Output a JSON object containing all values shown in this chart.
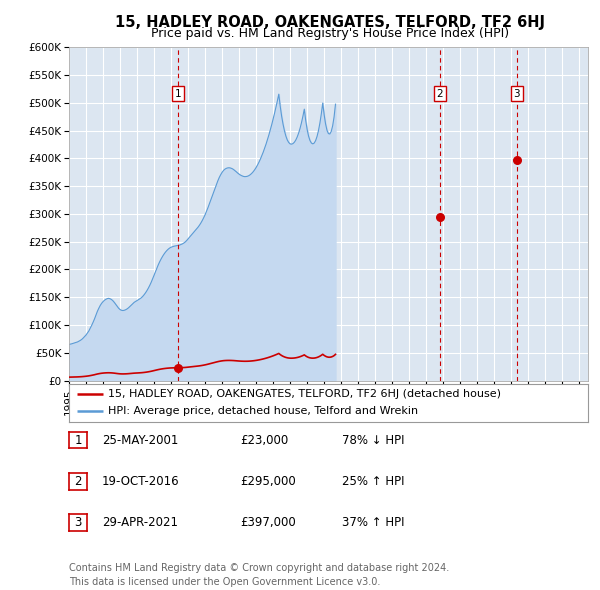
{
  "title": "15, HADLEY ROAD, OAKENGATES, TELFORD, TF2 6HJ",
  "subtitle": "Price paid vs. HM Land Registry's House Price Index (HPI)",
  "ylim": [
    0,
    600000
  ],
  "yticks": [
    0,
    50000,
    100000,
    150000,
    200000,
    250000,
    300000,
    350000,
    400000,
    450000,
    500000,
    550000,
    600000
  ],
  "ytick_labels": [
    "£0",
    "£50K",
    "£100K",
    "£150K",
    "£200K",
    "£250K",
    "£300K",
    "£350K",
    "£400K",
    "£450K",
    "£500K",
    "£550K",
    "£600K"
  ],
  "xlim_start": 1995.0,
  "xlim_end": 2025.5,
  "plot_bg_color": "#dce6f1",
  "grid_color": "#ffffff",
  "sale_dates": [
    2001.39,
    2016.8,
    2021.32
  ],
  "sale_prices": [
    23000,
    295000,
    397000
  ],
  "sale_labels": [
    "1",
    "2",
    "3"
  ],
  "hpi_base_values": [
    65.0,
    65.5,
    66.2,
    67.0,
    67.8,
    68.5,
    69.5,
    70.8,
    72.3,
    74.1,
    76.5,
    79.2,
    82.0,
    85.5,
    89.3,
    94.2,
    99.5,
    105.0,
    111.0,
    118.0,
    124.5,
    130.0,
    135.0,
    139.0,
    142.0,
    144.5,
    146.2,
    147.5,
    148.0,
    147.2,
    145.8,
    143.5,
    140.5,
    137.0,
    133.5,
    130.2,
    127.8,
    126.5,
    126.0,
    126.5,
    127.5,
    129.0,
    131.0,
    133.5,
    136.0,
    138.5,
    140.8,
    142.5,
    144.0,
    145.5,
    147.2,
    149.0,
    151.5,
    154.5,
    158.0,
    162.0,
    166.5,
    171.5,
    177.0,
    183.0,
    189.5,
    196.0,
    202.5,
    208.5,
    214.0,
    219.0,
    223.5,
    227.5,
    231.0,
    234.0,
    236.5,
    238.5,
    240.0,
    241.0,
    241.8,
    242.3,
    242.8,
    243.2,
    243.8,
    244.8,
    246.0,
    247.5,
    249.5,
    252.0,
    255.0,
    258.0,
    261.0,
    264.0,
    267.0,
    270.0,
    273.0,
    276.0,
    279.5,
    283.5,
    288.0,
    293.0,
    298.5,
    304.5,
    311.0,
    318.0,
    325.0,
    332.0,
    339.0,
    346.0,
    353.0,
    359.5,
    365.5,
    370.5,
    374.8,
    378.2,
    380.5,
    382.0,
    382.8,
    383.0,
    382.5,
    381.5,
    380.0,
    378.0,
    375.8,
    373.5,
    371.5,
    369.8,
    368.5,
    367.5,
    367.0,
    367.2,
    367.8,
    369.0,
    370.8,
    373.2,
    376.0,
    379.5,
    383.5,
    388.0,
    393.0,
    398.5,
    404.5,
    411.0,
    418.0,
    425.5,
    433.5,
    442.0,
    451.0,
    460.5,
    470.5,
    481.0,
    492.0,
    503.5,
    515.5,
    494.0,
    476.0,
    461.5,
    449.5,
    440.0,
    433.0,
    428.5,
    426.0,
    425.5,
    426.5,
    429.0,
    433.0,
    438.5,
    445.5,
    454.0,
    464.0,
    475.5,
    488.5,
    468.0,
    452.0,
    440.0,
    432.0,
    427.5,
    426.0,
    427.5,
    432.0,
    439.5,
    450.0,
    463.5,
    480.0,
    499.5,
    478.5,
    462.0,
    450.5,
    444.5,
    443.8,
    448.5,
    458.5,
    474.5,
    497.5
  ],
  "hpi_start_year": 1995.0,
  "hpi_step": 0.0833,
  "legend_line1": "15, HADLEY ROAD, OAKENGATES, TELFORD, TF2 6HJ (detached house)",
  "legend_line2": "HPI: Average price, detached house, Telford and Wrekin",
  "transaction_table": [
    {
      "num": "1",
      "date": "25-MAY-2001",
      "price": "£23,000",
      "hpi": "78% ↓ HPI"
    },
    {
      "num": "2",
      "date": "19-OCT-2016",
      "price": "£295,000",
      "hpi": "25% ↑ HPI"
    },
    {
      "num": "3",
      "date": "29-APR-2021",
      "price": "£397,000",
      "hpi": "37% ↑ HPI"
    }
  ],
  "footer": "Contains HM Land Registry data © Crown copyright and database right 2024.\nThis data is licensed under the Open Government Licence v3.0.",
  "sale_color": "#cc0000",
  "hpi_line_color": "#5b9bd5",
  "hpi_fill_color": "#c5d9f0",
  "vline_color": "#cc0000",
  "box_color": "#cc0000",
  "title_fontsize": 10.5,
  "subtitle_fontsize": 9,
  "tick_fontsize": 7.5,
  "legend_fontsize": 8,
  "table_fontsize": 8.5,
  "footer_fontsize": 7
}
